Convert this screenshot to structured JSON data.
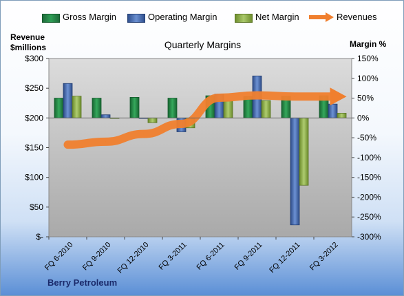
{
  "chart_data": {
    "type": "bar",
    "title": "Quarterly Margins",
    "company": "Berry Petroleum",
    "left_axis": {
      "label_line1": "Revenue",
      "label_line2": "$millions",
      "min": 0,
      "max": 300,
      "step": 50,
      "ticks": [
        "$-",
        "$50",
        "$100",
        "$150",
        "$200",
        "$250",
        "$300"
      ]
    },
    "right_axis": {
      "label": "Margin %",
      "min": -300,
      "max": 150,
      "step": 50,
      "ticks": [
        "-300%",
        "-250%",
        "-200%",
        "-150%",
        "-100%",
        "-50%",
        "0%",
        "50%",
        "100%",
        "150%"
      ]
    },
    "categories": [
      "FQ 6-2010",
      "FQ 9-2010",
      "FQ 12-2010",
      "FQ 3-2011",
      "FQ 6-2011",
      "FQ 9-2011",
      "FQ 12-2011",
      "FQ 3-2012"
    ],
    "series": [
      {
        "name": "Gross Margin",
        "kind": "bar",
        "axis": "right",
        "color": "#2e9e55",
        "values": [
          50,
          50,
          52,
          50,
          56,
          54,
          55,
          56
        ]
      },
      {
        "name": "Operating Margin",
        "kind": "bar",
        "axis": "right",
        "color": "#4f73c2",
        "values": [
          87,
          8,
          0,
          -35,
          60,
          106,
          -270,
          35
        ]
      },
      {
        "name": "Net Margin",
        "kind": "bar",
        "axis": "right",
        "color": "#8fb34a",
        "values": [
          55,
          0,
          -12,
          -25,
          43,
          44,
          -170,
          12
        ]
      },
      {
        "name": "Revenues",
        "kind": "line",
        "axis": "left",
        "color": "#f07f2e",
        "values": [
          155,
          160,
          173,
          190,
          234,
          238,
          236,
          236
        ]
      }
    ],
    "legend_position": "top",
    "grid": false
  }
}
